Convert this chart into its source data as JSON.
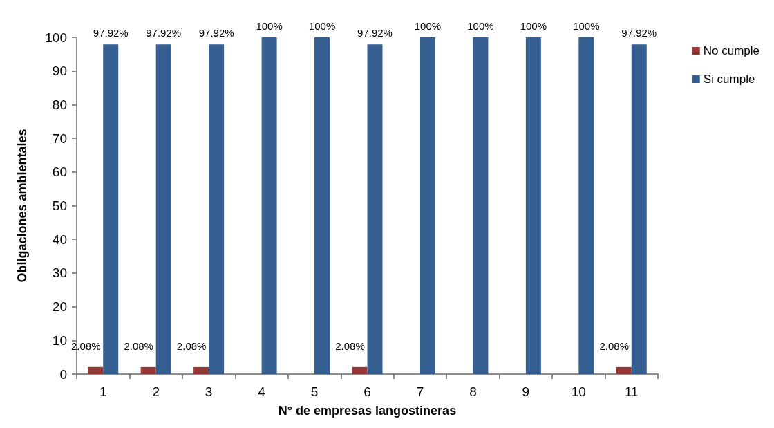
{
  "chart_data": {
    "type": "bar",
    "xlabel": "N° de empresas langostineras",
    "ylabel": "Obligaciones ambientales",
    "categories": [
      "1",
      "2",
      "3",
      "4",
      "5",
      "6",
      "7",
      "8",
      "9",
      "10",
      "11"
    ],
    "series": [
      {
        "name": "No cumple",
        "color": "#953735",
        "values": [
          2.08,
          2.08,
          2.08,
          0,
          0,
          2.08,
          0,
          0,
          0,
          0,
          2.08
        ],
        "value_labels": [
          "2.08%",
          "2.08%",
          "2.08%",
          null,
          null,
          "2.08%",
          null,
          null,
          null,
          null,
          "2.08%"
        ]
      },
      {
        "name": "Si cumple",
        "color": "#365f91",
        "values": [
          97.92,
          97.92,
          97.92,
          100,
          100,
          97.92,
          100,
          100,
          100,
          100,
          97.92
        ],
        "value_labels": [
          "97.92%",
          "97.92%",
          "97.92%",
          "100%",
          "100%",
          "97.92%",
          "100%",
          "100%",
          "100%",
          "100%",
          "97.92%"
        ]
      }
    ],
    "ylim": [
      0,
      100
    ],
    "yticks": [
      0,
      10,
      20,
      30,
      40,
      50,
      60,
      70,
      80,
      90,
      100
    ],
    "grid": false,
    "legend": "top right"
  }
}
